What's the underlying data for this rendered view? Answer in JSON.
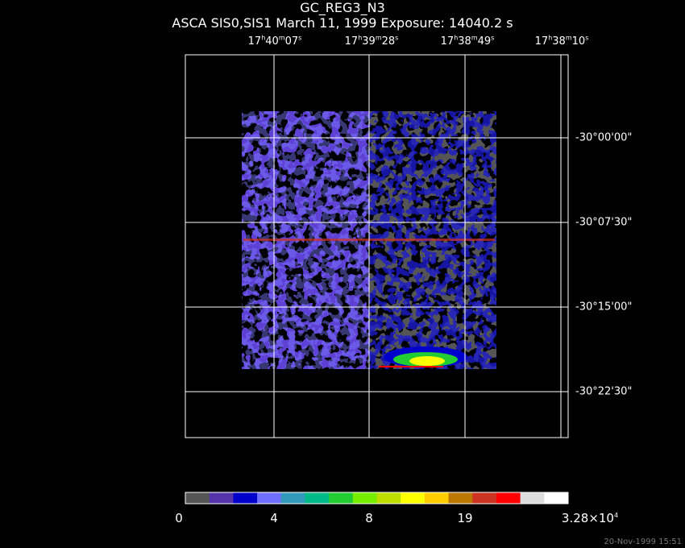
{
  "title": "GC_REG3_N3",
  "subtitle": "ASCA SIS0,SIS1 March 11, 1999 Exposure: 14040.2 s",
  "ra_labels": [
    {
      "h": "17",
      "m": "40",
      "s": "07"
    },
    {
      "h": "17",
      "m": "39",
      "s": "28"
    },
    {
      "h": "17",
      "m": "38",
      "s": "49"
    },
    {
      "h": "17",
      "m": "38",
      "s": "10"
    }
  ],
  "dec_labels": [
    "-30°00'00\"",
    "-30°07'30\"",
    "-30°15'00\"",
    "-30°22'30\""
  ],
  "colorbar": {
    "colors": [
      "#555555",
      "#5533aa",
      "#0000cc",
      "#6f6fff",
      "#3399bb",
      "#00bb88",
      "#22cc33",
      "#77ee00",
      "#bbdd00",
      "#ffff00",
      "#ffcc00",
      "#bb7700",
      "#cc3322",
      "#ff0000",
      "#dddddd",
      "#ffffff"
    ],
    "labels": [
      "0",
      "4",
      "8",
      "19"
    ],
    "max_label": "3.28×10",
    "max_exp": "4"
  },
  "timestamp": "20-Nov-1999 15:51"
}
